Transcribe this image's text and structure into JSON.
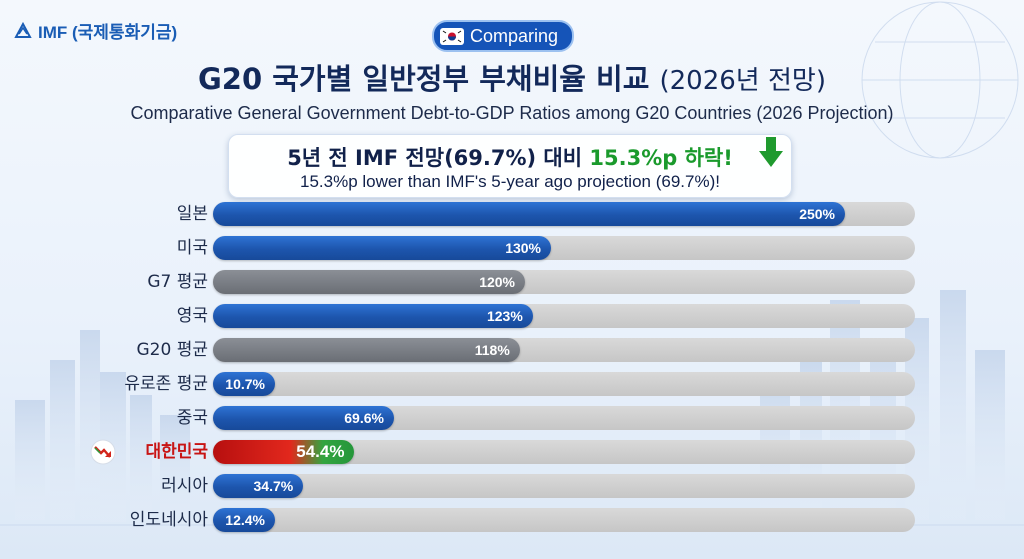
{
  "header": {
    "logo_text": "IMF (국제통화기금)",
    "tag": "Comparing",
    "title": "G20 국가별 일반정부 부채비율 비교",
    "title_suffix": "(2026년 전망)",
    "subtitle": "Comparative General Government Debt-to-GDP Ratios among G20 Countries (2026 Projection)"
  },
  "callout": {
    "line1_pre": "5년 전 IMF 전망(69.7%) 대비 ",
    "line1_highlight": "15.3%p 하락!",
    "line2": "15.3%p lower than IMF's 5-year ago projection (69.7%)!"
  },
  "colors": {
    "blue": "#1d55ad",
    "gray": "#7a7e85",
    "highlight_red": "#c81414",
    "highlight_green": "#25963a"
  },
  "icons": [
    "globe-logo-icon",
    "korea-flag-icon",
    "green-down-arrow-icon",
    "red-trend-down-icon"
  ],
  "chart_data": {
    "type": "bar",
    "orientation": "horizontal",
    "categories": [
      "일본",
      "미국",
      "G7 평균",
      "영국",
      "G20 평균",
      "유로존 평균",
      "중국",
      "대한민국",
      "러시아",
      "인도네시아"
    ],
    "values": [
      250,
      130,
      120,
      123,
      118,
      10.7,
      69.6,
      54.4,
      34.7,
      12.4
    ],
    "value_labels": [
      "250%",
      "130%",
      "120%",
      "123%",
      "118%",
      "10.7%",
      "69.6%",
      "54.4%",
      "34.7%",
      "12.4%"
    ],
    "bar_colors": [
      "blue",
      "blue",
      "gray",
      "blue",
      "gray",
      "blue",
      "blue",
      "red-green",
      "blue",
      "blue"
    ],
    "highlight": "대한민국",
    "xlim": [
      0,
      270
    ],
    "grid": false
  }
}
